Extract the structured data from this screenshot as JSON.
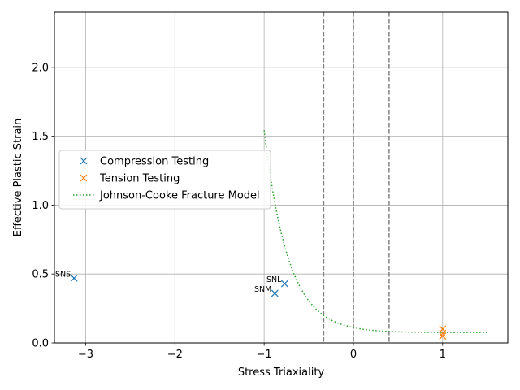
{
  "chart_data": {
    "type": "scatter",
    "title": "",
    "xlabel": "Stress Triaxiality",
    "ylabel": "Effective Plastic Strain",
    "xlim": [
      -3.35,
      1.73
    ],
    "ylim": [
      0,
      2.4
    ],
    "xticks": [
      -3,
      -2,
      -1,
      0,
      1
    ],
    "xtick_labels": [
      "−3",
      "−2",
      "−1",
      "0",
      "1"
    ],
    "yticks": [
      0.0,
      0.5,
      1.0,
      1.5,
      2.0
    ],
    "ytick_labels": [
      "0.0",
      "0.5",
      "1.0",
      "1.5",
      "2.0"
    ],
    "grid": true,
    "legend_position": "center-left",
    "vertical_lines": [
      -0.333,
      0.0,
      0.0,
      0.4
    ],
    "series": [
      {
        "name": "Compression Testing",
        "marker": "x",
        "color": "#1f77b4",
        "points": [
          {
            "x": -3.13,
            "y": 0.47,
            "label": "SNS"
          },
          {
            "x": -0.77,
            "y": 0.43,
            "label": "SNL"
          },
          {
            "x": -0.88,
            "y": 0.36,
            "label": "SNM"
          }
        ]
      },
      {
        "name": "Tension Testing",
        "marker": "x",
        "color": "#ff7f0e",
        "points": [
          {
            "x": 1.0,
            "y": 0.1
          },
          {
            "x": 1.0,
            "y": 0.07
          },
          {
            "x": 1.0,
            "y": 0.05
          }
        ]
      },
      {
        "name": "Johnson-Cooke Fracture Model",
        "marker": "dotted-line",
        "color": "#2ca02c",
        "model": {
          "d1": 0.075,
          "d2": 0.0363,
          "d3": -3.7,
          "x_start": -1.0,
          "x_end": 1.5
        }
      }
    ]
  }
}
